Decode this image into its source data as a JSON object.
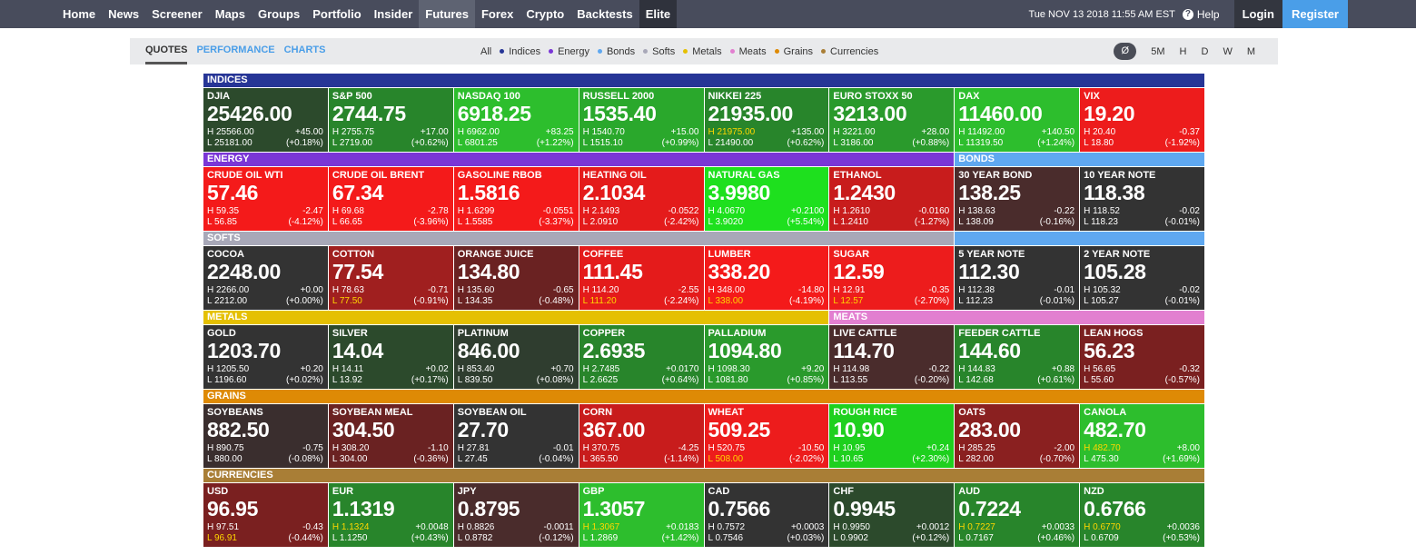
{
  "nav": {
    "items": [
      "Home",
      "News",
      "Screener",
      "Maps",
      "Groups",
      "Portfolio",
      "Insider",
      "Futures",
      "Forex",
      "Crypto",
      "Backtests",
      "Elite"
    ],
    "active": "Futures",
    "datetime": "Tue NOV 13 2018 11:55 AM EST",
    "help": "Help",
    "login": "Login",
    "register": "Register"
  },
  "subnav": {
    "tabs": [
      "QUOTES",
      "PERFORMANCE",
      "CHARTS"
    ],
    "active_tab": "QUOTES",
    "legend": [
      {
        "label": "All",
        "color": ""
      },
      {
        "label": "Indices",
        "color": "#263596"
      },
      {
        "label": "Energy",
        "color": "#7a36d6"
      },
      {
        "label": "Bonds",
        "color": "#5fa8f0"
      },
      {
        "label": "Softs",
        "color": "#a8a8b8"
      },
      {
        "label": "Metals",
        "color": "#e5c002"
      },
      {
        "label": "Meats",
        "color": "#e27fd0"
      },
      {
        "label": "Grains",
        "color": "#de8a05"
      },
      {
        "label": "Currencies",
        "color": "#a97e36"
      }
    ],
    "timeframes": [
      "Ø",
      "5M",
      "H",
      "D",
      "W",
      "M"
    ],
    "selected_timeframe": "Ø"
  },
  "rows": [
    {
      "sections": [
        {
          "label": "INDICES",
          "span": 8,
          "color": "#263596"
        }
      ],
      "tiles": [
        {
          "name": "DJIA",
          "price": "25426.00",
          "high": "H 25566.00",
          "low": "L 25181.00",
          "chg": "+45.00",
          "pct": "(+0.18%)",
          "color": "#2c4a2c",
          "hl": ""
        },
        {
          "name": "S&P 500",
          "price": "2744.75",
          "high": "H 2755.75",
          "low": "L 2719.00",
          "chg": "+17.00",
          "pct": "(+0.62%)",
          "color": "#28852b",
          "hl": ""
        },
        {
          "name": "NASDAQ 100",
          "price": "6918.25",
          "high": "H 6962.00",
          "low": "L 6801.25",
          "chg": "+83.25",
          "pct": "(+1.22%)",
          "color": "#2dbe2d",
          "hl": ""
        },
        {
          "name": "RUSSELL 2000",
          "price": "1535.40",
          "high": "H 1540.70",
          "low": "L 1515.10",
          "chg": "+15.00",
          "pct": "(+0.99%)",
          "color": "#2aa82c",
          "hl": ""
        },
        {
          "name": "NIKKEI 225",
          "price": "21935.00",
          "high": "H 21975.00",
          "low": "L 21490.00",
          "chg": "+135.00",
          "pct": "(+0.62%)",
          "color": "#28852b",
          "hl": "high"
        },
        {
          "name": "EURO STOXX 50",
          "price": "3213.00",
          "high": "H 3221.00",
          "low": "L 3186.00",
          "chg": "+28.00",
          "pct": "(+0.88%)",
          "color": "#2a9a2c",
          "hl": ""
        },
        {
          "name": "DAX",
          "price": "11460.00",
          "high": "H 11492.00",
          "low": "L 11319.50",
          "chg": "+140.50",
          "pct": "(+1.24%)",
          "color": "#2dbe2d",
          "hl": ""
        },
        {
          "name": "VIX",
          "price": "19.20",
          "high": "H 20.40",
          "low": "L 18.80",
          "chg": "-0.37",
          "pct": "(-1.92%)",
          "color": "#ed1c1c",
          "hl": ""
        }
      ]
    },
    {
      "sections": [
        {
          "label": "ENERGY",
          "span": 6,
          "color": "#7a36d6"
        },
        {
          "label": "BONDS",
          "span": 2,
          "color": "#5fa8f0"
        }
      ],
      "tiles": [
        {
          "name": "CRUDE OIL WTI",
          "price": "57.46",
          "high": "H 59.35",
          "low": "L 56.85",
          "chg": "-2.47",
          "pct": "(-4.12%)",
          "color": "#f41a1a",
          "hl": ""
        },
        {
          "name": "CRUDE OIL BRENT",
          "price": "67.34",
          "high": "H 69.68",
          "low": "L 66.65",
          "chg": "-2.78",
          "pct": "(-3.96%)",
          "color": "#f41a1a",
          "hl": ""
        },
        {
          "name": "GASOLINE RBOB",
          "price": "1.5816",
          "high": "H 1.6299",
          "low": "L 1.5585",
          "chg": "-0.0551",
          "pct": "(-3.37%)",
          "color": "#f41a1a",
          "hl": ""
        },
        {
          "name": "HEATING OIL",
          "price": "2.1034",
          "high": "H 2.1493",
          "low": "L 2.0910",
          "chg": "-0.0522",
          "pct": "(-2.42%)",
          "color": "#e41b1b",
          "hl": ""
        },
        {
          "name": "NATURAL GAS",
          "price": "3.9980",
          "high": "H 4.0670",
          "low": "L 3.9020",
          "chg": "+0.2100",
          "pct": "(+5.54%)",
          "color": "#1ee01e",
          "hl": ""
        },
        {
          "name": "ETHANOL",
          "price": "1.2430",
          "high": "H 1.2610",
          "low": "L 1.2410",
          "chg": "-0.0160",
          "pct": "(-1.27%)",
          "color": "#c81c1c",
          "hl": ""
        },
        {
          "name": "30 YEAR BOND",
          "price": "138.25",
          "high": "H 138.63",
          "low": "L 138.09",
          "chg": "-0.22",
          "pct": "(-0.16%)",
          "color": "#4a2c2c",
          "hl": ""
        },
        {
          "name": "10 YEAR NOTE",
          "price": "118.38",
          "high": "H 118.52",
          "low": "L 118.23",
          "chg": "-0.02",
          "pct": "(-0.01%)",
          "color": "#333333",
          "hl": ""
        }
      ]
    },
    {
      "sections": [
        {
          "label": "SOFTS",
          "span": 6,
          "color": "#a8a8b8"
        },
        {
          "label": "",
          "span": 2,
          "color": "#5fa8f0"
        }
      ],
      "tiles": [
        {
          "name": "COCOA",
          "price": "2248.00",
          "high": "H 2266.00",
          "low": "L 2212.00",
          "chg": "+0.00",
          "pct": "(+0.00%)",
          "color": "#333333",
          "hl": ""
        },
        {
          "name": "COTTON",
          "price": "77.54",
          "high": "H 78.63",
          "low": "L 77.50",
          "chg": "-0.71",
          "pct": "(-0.91%)",
          "color": "#a01f1f",
          "hl": "low"
        },
        {
          "name": "ORANGE JUICE",
          "price": "134.80",
          "high": "H 135.60",
          "low": "L 134.35",
          "chg": "-0.65",
          "pct": "(-0.48%)",
          "color": "#6a2222",
          "hl": ""
        },
        {
          "name": "COFFEE",
          "price": "111.45",
          "high": "H 114.20",
          "low": "L 111.20",
          "chg": "-2.55",
          "pct": "(-2.24%)",
          "color": "#e41b1b",
          "hl": "low"
        },
        {
          "name": "LUMBER",
          "price": "338.20",
          "high": "H 348.00",
          "low": "L 338.00",
          "chg": "-14.80",
          "pct": "(-4.19%)",
          "color": "#f41a1a",
          "hl": "low"
        },
        {
          "name": "SUGAR",
          "price": "12.59",
          "high": "H 12.91",
          "low": "L 12.57",
          "chg": "-0.35",
          "pct": "(-2.70%)",
          "color": "#ed1c1c",
          "hl": "low"
        },
        {
          "name": "5 YEAR NOTE",
          "price": "112.30",
          "high": "H 112.38",
          "low": "L 112.23",
          "chg": "-0.01",
          "pct": "(-0.01%)",
          "color": "#333333",
          "hl": ""
        },
        {
          "name": "2 YEAR NOTE",
          "price": "105.28",
          "high": "H 105.32",
          "low": "L 105.27",
          "chg": "-0.02",
          "pct": "(-0.01%)",
          "color": "#333333",
          "hl": ""
        }
      ]
    },
    {
      "sections": [
        {
          "label": "METALS",
          "span": 5,
          "color": "#e5c002"
        },
        {
          "label": "MEATS",
          "span": 3,
          "color": "#e27fd0"
        }
      ],
      "tiles": [
        {
          "name": "GOLD",
          "price": "1203.70",
          "high": "H 1205.50",
          "low": "L 1196.60",
          "chg": "+0.20",
          "pct": "(+0.02%)",
          "color": "#333333",
          "hl": ""
        },
        {
          "name": "SILVER",
          "price": "14.04",
          "high": "H 14.11",
          "low": "L 13.92",
          "chg": "+0.02",
          "pct": "(+0.17%)",
          "color": "#2c4a2c",
          "hl": ""
        },
        {
          "name": "PLATINUM",
          "price": "846.00",
          "high": "H 853.40",
          "low": "L 839.50",
          "chg": "+0.70",
          "pct": "(+0.08%)",
          "color": "#2f3d2f",
          "hl": ""
        },
        {
          "name": "COPPER",
          "price": "2.6935",
          "high": "H 2.7485",
          "low": "L 2.6625",
          "chg": "+0.0170",
          "pct": "(+0.64%)",
          "color": "#28852b",
          "hl": ""
        },
        {
          "name": "PALLADIUM",
          "price": "1094.80",
          "high": "H 1098.30",
          "low": "L 1081.80",
          "chg": "+9.20",
          "pct": "(+0.85%)",
          "color": "#2a9a2c",
          "hl": ""
        },
        {
          "name": "LIVE CATTLE",
          "price": "114.70",
          "high": "H 114.98",
          "low": "L 113.55",
          "chg": "-0.22",
          "pct": "(-0.20%)",
          "color": "#4a2c2c",
          "hl": ""
        },
        {
          "name": "FEEDER CATTLE",
          "price": "144.60",
          "high": "H 144.83",
          "low": "L 142.68",
          "chg": "+0.88",
          "pct": "(+0.61%)",
          "color": "#28852b",
          "hl": ""
        },
        {
          "name": "LEAN HOGS",
          "price": "56.23",
          "high": "H 56.65",
          "low": "L 55.60",
          "chg": "-0.32",
          "pct": "(-0.57%)",
          "color": "#7a2020",
          "hl": ""
        }
      ]
    },
    {
      "sections": [
        {
          "label": "GRAINS",
          "span": 8,
          "color": "#de8a05"
        }
      ],
      "tiles": [
        {
          "name": "SOYBEANS",
          "price": "882.50",
          "high": "H 890.75",
          "low": "L 880.00",
          "chg": "-0.75",
          "pct": "(-0.08%)",
          "color": "#3a2e2e",
          "hl": ""
        },
        {
          "name": "SOYBEAN MEAL",
          "price": "304.50",
          "high": "H 308.20",
          "low": "L 304.00",
          "chg": "-1.10",
          "pct": "(-0.36%)",
          "color": "#6a2222",
          "hl": ""
        },
        {
          "name": "SOYBEAN OIL",
          "price": "27.70",
          "high": "H 27.81",
          "low": "L 27.45",
          "chg": "-0.01",
          "pct": "(-0.04%)",
          "color": "#333333",
          "hl": ""
        },
        {
          "name": "CORN",
          "price": "367.00",
          "high": "H 370.75",
          "low": "L 365.50",
          "chg": "-4.25",
          "pct": "(-1.14%)",
          "color": "#c81c1c",
          "hl": ""
        },
        {
          "name": "WHEAT",
          "price": "509.25",
          "high": "H 520.75",
          "low": "L 508.00",
          "chg": "-10.50",
          "pct": "(-2.02%)",
          "color": "#ed1c1c",
          "hl": "low"
        },
        {
          "name": "ROUGH RICE",
          "price": "10.90",
          "high": "H 10.95",
          "low": "L 10.65",
          "chg": "+0.24",
          "pct": "(+2.30%)",
          "color": "#1ed01e",
          "hl": ""
        },
        {
          "name": "OATS",
          "price": "283.00",
          "high": "H 285.25",
          "low": "L 282.00",
          "chg": "-2.00",
          "pct": "(-0.70%)",
          "color": "#8a2020",
          "hl": ""
        },
        {
          "name": "CANOLA",
          "price": "482.70",
          "high": "H 482.70",
          "low": "L 475.30",
          "chg": "+8.00",
          "pct": "(+1.69%)",
          "color": "#2dbe2d",
          "hl": "high"
        }
      ]
    },
    {
      "sections": [
        {
          "label": "CURRENCIES",
          "span": 8,
          "color": "#a97e36"
        }
      ],
      "tiles": [
        {
          "name": "USD",
          "price": "96.95",
          "high": "H 97.51",
          "low": "L 96.91",
          "chg": "-0.43",
          "pct": "(-0.44%)",
          "color": "#7a2020",
          "hl": "low"
        },
        {
          "name": "EUR",
          "price": "1.1319",
          "high": "H 1.1324",
          "low": "L 1.1250",
          "chg": "+0.0048",
          "pct": "(+0.43%)",
          "color": "#28852b",
          "hl": "high"
        },
        {
          "name": "JPY",
          "price": "0.8795",
          "high": "H 0.8826",
          "low": "L 0.8782",
          "chg": "-0.0011",
          "pct": "(-0.12%)",
          "color": "#4a2c2c",
          "hl": ""
        },
        {
          "name": "GBP",
          "price": "1.3057",
          "high": "H 1.3067",
          "low": "L 1.2869",
          "chg": "+0.0183",
          "pct": "(+1.42%)",
          "color": "#2dbe2d",
          "hl": "high"
        },
        {
          "name": "CAD",
          "price": "0.7566",
          "high": "H 0.7572",
          "low": "L 0.7546",
          "chg": "+0.0003",
          "pct": "(+0.03%)",
          "color": "#333333",
          "hl": ""
        },
        {
          "name": "CHF",
          "price": "0.9945",
          "high": "H 0.9950",
          "low": "L 0.9902",
          "chg": "+0.0012",
          "pct": "(+0.12%)",
          "color": "#2c4a2c",
          "hl": ""
        },
        {
          "name": "AUD",
          "price": "0.7224",
          "high": "H 0.7227",
          "low": "L 0.7167",
          "chg": "+0.0033",
          "pct": "(+0.46%)",
          "color": "#28852b",
          "hl": "high"
        },
        {
          "name": "NZD",
          "price": "0.6766",
          "high": "H 0.6770",
          "low": "L 0.6709",
          "chg": "+0.0036",
          "pct": "(+0.53%)",
          "color": "#28852b",
          "hl": "high"
        }
      ]
    }
  ]
}
